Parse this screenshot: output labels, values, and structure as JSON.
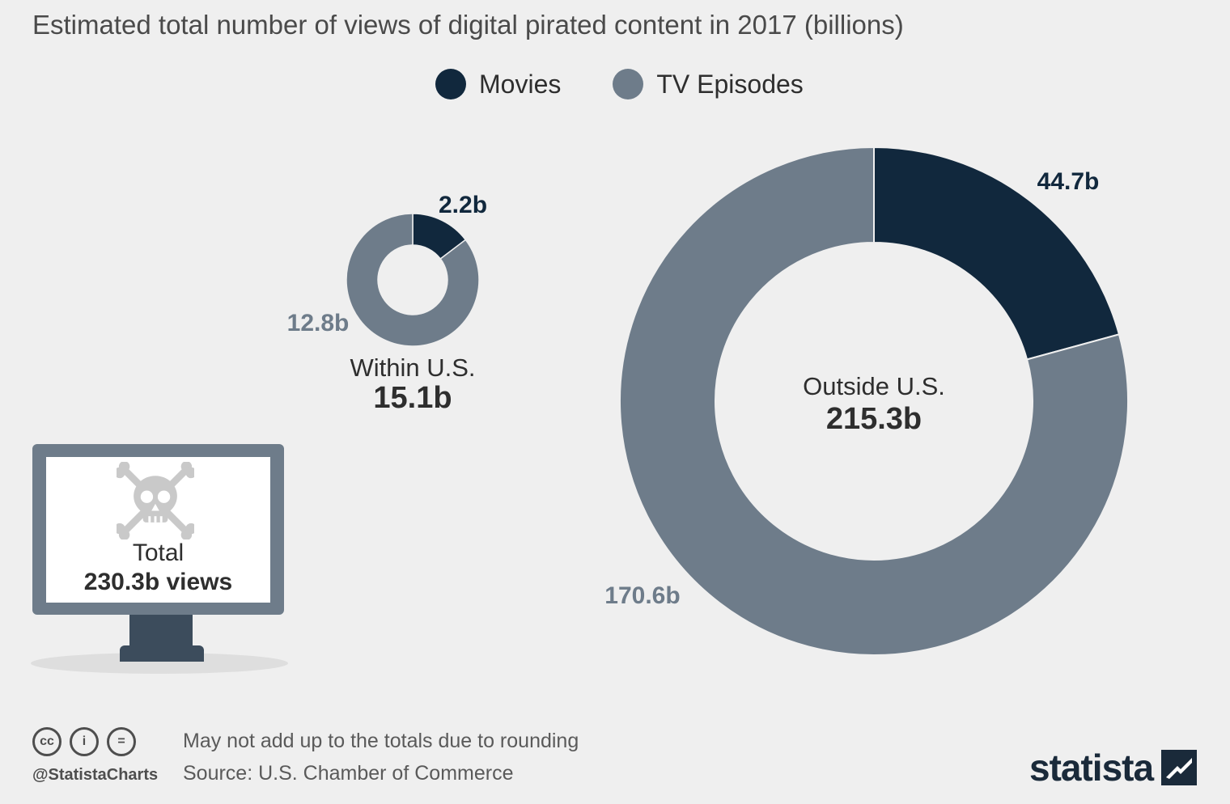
{
  "chart_data": {
    "type": "pie",
    "title": "Estimated total number of views of digital pirated content in 2017 (billions)",
    "legend": [
      {
        "name": "Movies",
        "color": "#11283d"
      },
      {
        "name": "TV Episodes",
        "color": "#6e7c8a"
      }
    ],
    "legend_position": "top-center",
    "charts": [
      {
        "name": "Within U.S.",
        "total_label": "15.1b",
        "slices": [
          {
            "series": "Movies",
            "value": 2.2,
            "label": "2.2b"
          },
          {
            "series": "TV Episodes",
            "value": 12.8,
            "label": "12.8b"
          }
        ]
      },
      {
        "name": "Outside U.S.",
        "total_label": "215.3b",
        "slices": [
          {
            "series": "Movies",
            "value": 44.7,
            "label": "44.7b"
          },
          {
            "series": "TV Episodes",
            "value": 170.6,
            "label": "170.6b"
          }
        ]
      }
    ]
  },
  "total": {
    "label": "Total",
    "value": "230.3b views",
    "icon": "skull-crossbones-icon"
  },
  "footer": {
    "note": "May not add up to the totals due to rounding",
    "source": "Source: U.S. Chamber of Commerce",
    "handle": "@StatistaCharts",
    "license_icons": [
      "cc",
      "i",
      "="
    ],
    "brand": "statista"
  }
}
